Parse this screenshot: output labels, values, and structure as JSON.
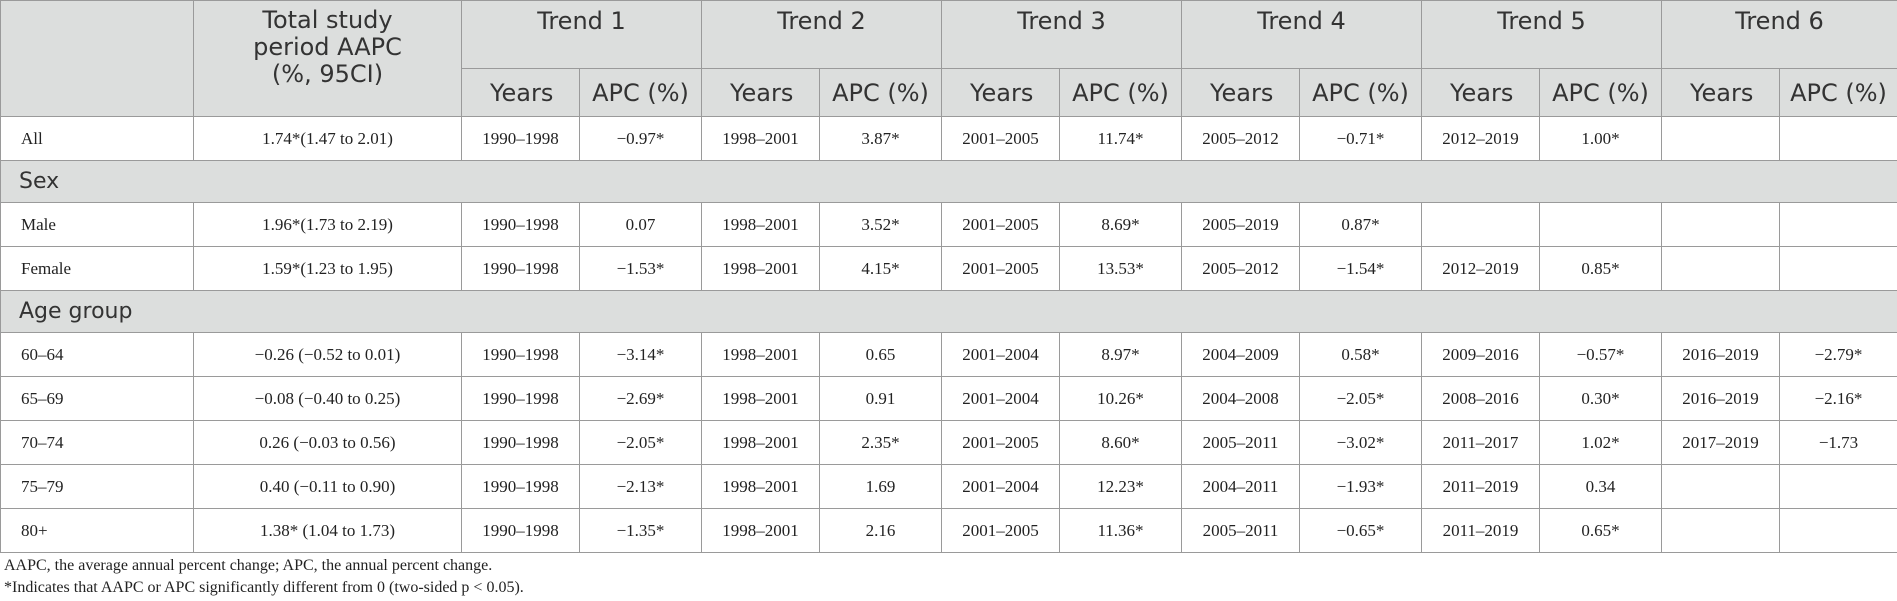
{
  "table": {
    "header": {
      "corner": "",
      "total": "Total study period AAPC (%, 95CI)",
      "trends": [
        {
          "title": "Trend 1",
          "years": "Years",
          "apc": "APC (%)"
        },
        {
          "title": "Trend 2",
          "years": "Years",
          "apc": "APC (%)"
        },
        {
          "title": "Trend 3",
          "years": "Years",
          "apc": "APC (%)"
        },
        {
          "title": "Trend 4",
          "years": "Years",
          "apc": "APC (%)"
        },
        {
          "title": "Trend 5",
          "years": "Years",
          "apc": "APC (%)"
        },
        {
          "title": "Trend 6",
          "years": "Years",
          "apc": "APC (%)"
        }
      ]
    },
    "rows": [
      {
        "kind": "data",
        "label": "All",
        "total": "1.74*(1.47 to 2.01)",
        "cells": [
          "1990–1998",
          "−0.97*",
          "1998–2001",
          "3.87*",
          "2001–2005",
          "11.74*",
          "2005–2012",
          "−0.71*",
          "2012–2019",
          "1.00*",
          "",
          ""
        ]
      },
      {
        "kind": "section",
        "label": "Sex"
      },
      {
        "kind": "data",
        "label": "Male",
        "total": "1.96*(1.73 to 2.19)",
        "cells": [
          "1990–1998",
          "0.07",
          "1998–2001",
          "3.52*",
          "2001–2005",
          "8.69*",
          "2005–2019",
          "0.87*",
          "",
          "",
          "",
          ""
        ]
      },
      {
        "kind": "data",
        "label": "Female",
        "total": "1.59*(1.23 to 1.95)",
        "cells": [
          "1990–1998",
          "−1.53*",
          "1998–2001",
          "4.15*",
          "2001–2005",
          "13.53*",
          "2005–2012",
          "−1.54*",
          "2012–2019",
          "0.85*",
          "",
          ""
        ]
      },
      {
        "kind": "section",
        "label": "Age group"
      },
      {
        "kind": "data",
        "label": "60–64",
        "total": "−0.26 (−0.52 to 0.01)",
        "cells": [
          "1990–1998",
          "−3.14*",
          "1998–2001",
          "0.65",
          "2001–2004",
          "8.97*",
          "2004–2009",
          "0.58*",
          "2009–2016",
          "−0.57*",
          "2016–2019",
          "−2.79*"
        ]
      },
      {
        "kind": "data",
        "label": "65–69",
        "total": "−0.08 (−0.40 to 0.25)",
        "cells": [
          "1990–1998",
          "−2.69*",
          "1998–2001",
          "0.91",
          "2001–2004",
          "10.26*",
          "2004–2008",
          "−2.05*",
          "2008–2016",
          "0.30*",
          "2016–2019",
          "−2.16*"
        ]
      },
      {
        "kind": "data",
        "label": "70–74",
        "total": "0.26 (−0.03 to 0.56)",
        "cells": [
          "1990–1998",
          "−2.05*",
          "1998–2001",
          "2.35*",
          "2001–2005",
          "8.60*",
          "2005–2011",
          "−3.02*",
          "2011–2017",
          "1.02*",
          "2017–2019",
          "−1.73"
        ]
      },
      {
        "kind": "data",
        "label": "75–79",
        "total": "0.40 (−0.11 to 0.90)",
        "cells": [
          "1990–1998",
          "−2.13*",
          "1998–2001",
          "1.69",
          "2001–2004",
          "12.23*",
          "2004–2011",
          "−1.93*",
          "2011–2019",
          "0.34",
          "",
          ""
        ]
      },
      {
        "kind": "data",
        "label": "80+",
        "total": "1.38* (1.04 to 1.73)",
        "cells": [
          "1990–1998",
          "−1.35*",
          "1998–2001",
          "2.16",
          "2001–2005",
          "11.36*",
          "2005–2011",
          "−0.65*",
          "2011–2019",
          "0.65*",
          "",
          ""
        ]
      }
    ],
    "footnotes": [
      "AAPC, the average annual percent change; APC, the annual percent change.",
      "*Indicates that AAPC or APC significantly different from 0 (two-sided p < 0.05)."
    ]
  }
}
